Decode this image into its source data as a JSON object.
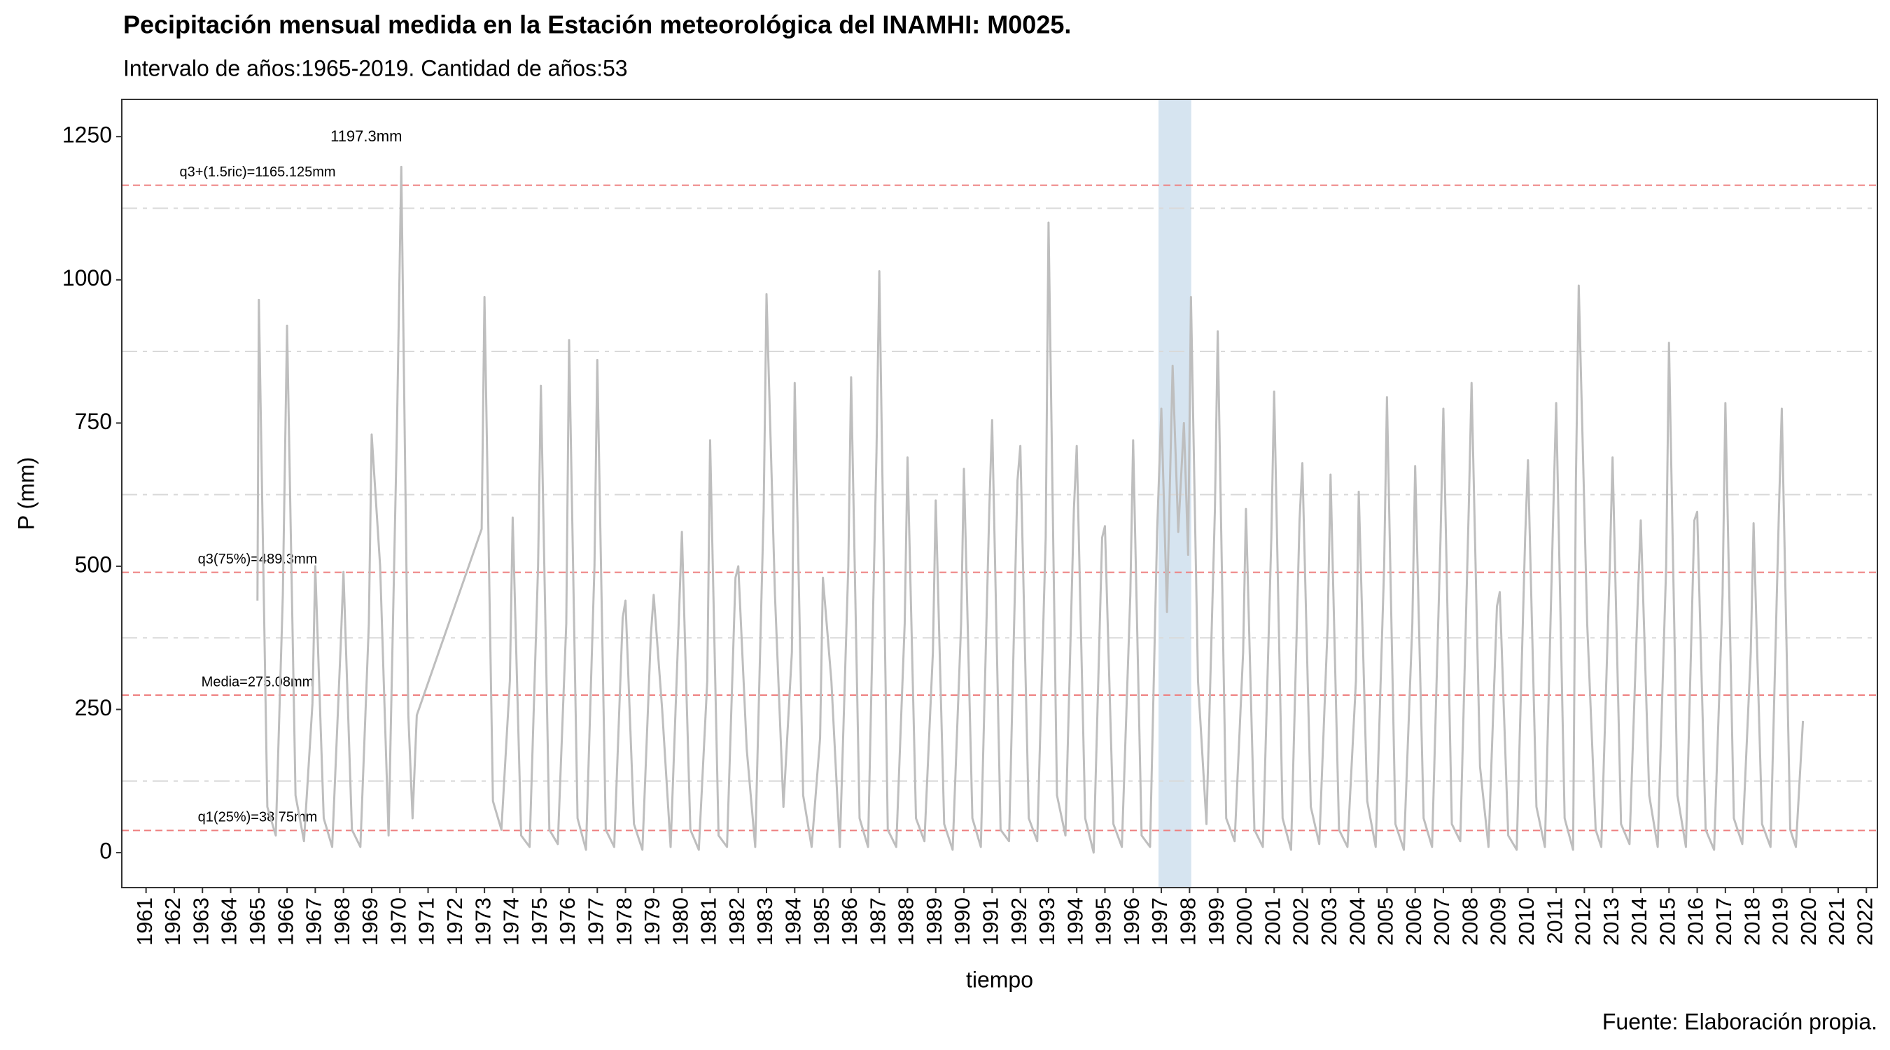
{
  "chart_data": {
    "type": "line",
    "title": "Pecipitación mensual medida en la Estación meteorológica del INAMHI: M0025.",
    "subtitle": "Intervalo de años:1965-2019. Cantidad de años:53",
    "x_label": "tiempo",
    "y_label": "P (mm)",
    "caption": "Fuente: Elaboración propia.",
    "color": "#bebebe",
    "x": [
      1964.95,
      1965.0,
      1965.3,
      1965.6,
      1965.85,
      1966.0,
      1966.3,
      1966.6,
      1966.9,
      1967.0,
      1967.3,
      1967.6,
      1967.9,
      1968.0,
      1968.3,
      1968.6,
      1968.9,
      1969.0,
      1969.3,
      1969.6,
      1969.9,
      1970.05,
      1970.3,
      1970.45,
      1970.6,
      1972.9,
      1973.0,
      1973.3,
      1973.6,
      1973.9,
      1974.0,
      1974.3,
      1974.6,
      1974.9,
      1975.0,
      1975.3,
      1975.6,
      1975.9,
      1976.0,
      1976.3,
      1976.6,
      1976.9,
      1977.0,
      1977.3,
      1977.6,
      1977.9,
      1978.0,
      1978.3,
      1978.6,
      1978.9,
      1979.0,
      1979.3,
      1979.6,
      1979.9,
      1980.0,
      1980.3,
      1980.6,
      1980.9,
      1981.0,
      1981.3,
      1981.6,
      1981.9,
      1982.0,
      1982.3,
      1982.6,
      1982.9,
      1983.0,
      1983.3,
      1983.6,
      1983.9,
      1984.0,
      1984.3,
      1984.6,
      1984.9,
      1985.0,
      1985.3,
      1985.6,
      1985.9,
      1986.0,
      1986.3,
      1986.6,
      1986.9,
      1987.0,
      1987.3,
      1987.6,
      1987.9,
      1988.0,
      1988.3,
      1988.6,
      1988.9,
      1989.0,
      1989.3,
      1989.6,
      1989.9,
      1990.0,
      1990.3,
      1990.6,
      1990.9,
      1991.0,
      1991.3,
      1991.6,
      1991.9,
      1992.0,
      1992.3,
      1992.6,
      1992.9,
      1993.0,
      1993.3,
      1993.6,
      1993.9,
      1994.0,
      1994.3,
      1994.6,
      1994.9,
      1995.0,
      1995.3,
      1995.6,
      1995.9,
      1996.0,
      1996.3,
      1996.6,
      1996.85,
      1997.0,
      1997.2,
      1997.4,
      1997.6,
      1997.8,
      1997.95,
      1998.05,
      1998.3,
      1998.6,
      1998.9,
      1999.0,
      1999.3,
      1999.6,
      1999.9,
      2000.0,
      2000.3,
      2000.6,
      2000.9,
      2001.0,
      2001.3,
      2001.6,
      2001.9,
      2002.0,
      2002.3,
      2002.6,
      2002.9,
      2003.0,
      2003.3,
      2003.6,
      2003.9,
      2004.0,
      2004.3,
      2004.6,
      2004.9,
      2005.0,
      2005.3,
      2005.6,
      2005.9,
      2006.0,
      2006.3,
      2006.6,
      2006.9,
      2007.0,
      2007.3,
      2007.6,
      2007.9,
      2008.0,
      2008.3,
      2008.6,
      2008.9,
      2009.0,
      2009.3,
      2009.6,
      2009.9,
      2010.0,
      2010.3,
      2010.6,
      2010.9,
      2011.0,
      2011.3,
      2011.6,
      2011.7,
      2011.8,
      2012.1,
      2012.4,
      2012.6,
      2012.9,
      2013.0,
      2013.3,
      2013.6,
      2013.9,
      2014.0,
      2014.3,
      2014.6,
      2014.9,
      2015.0,
      2015.3,
      2015.6,
      2015.9,
      2016.0,
      2016.3,
      2016.6,
      2016.9,
      2017.0,
      2017.3,
      2017.6,
      2017.9,
      2018.0,
      2018.3,
      2018.6,
      2018.9,
      2019.0,
      2019.3,
      2019.5,
      2019.75
    ],
    "values": [
      440,
      965,
      80,
      30,
      450,
      920,
      100,
      20,
      260,
      500,
      60,
      10,
      360,
      490,
      40,
      10,
      400,
      730,
      500,
      30,
      750,
      1197.3,
      240,
      60,
      240,
      565,
      970,
      90,
      40,
      300,
      585,
      30,
      10,
      500,
      815,
      40,
      15,
      400,
      895,
      60,
      5,
      500,
      860,
      40,
      10,
      410,
      440,
      50,
      5,
      380,
      450,
      250,
      10,
      420,
      560,
      40,
      5,
      300,
      720,
      30,
      10,
      480,
      500,
      180,
      10,
      600,
      975,
      450,
      80,
      350,
      820,
      100,
      10,
      200,
      480,
      300,
      10,
      500,
      830,
      60,
      10,
      700,
      1015,
      40,
      10,
      400,
      690,
      60,
      20,
      350,
      615,
      50,
      5,
      400,
      670,
      60,
      10,
      600,
      755,
      40,
      20,
      650,
      710,
      60,
      20,
      550,
      1100,
      100,
      30,
      600,
      710,
      60,
      0,
      550,
      570,
      50,
      10,
      450,
      720,
      30,
      10,
      560,
      775,
      420,
      850,
      560,
      750,
      520,
      970,
      300,
      50,
      600,
      910,
      60,
      20,
      350,
      600,
      40,
      10,
      550,
      805,
      60,
      5,
      580,
      680,
      80,
      15,
      400,
      660,
      40,
      10,
      300,
      630,
      90,
      10,
      500,
      795,
      50,
      5,
      400,
      675,
      60,
      10,
      550,
      775,
      50,
      20,
      600,
      820,
      150,
      10,
      430,
      455,
      30,
      5,
      550,
      685,
      80,
      10,
      600,
      785,
      60,
      5,
      650,
      990,
      400,
      40,
      10,
      500,
      690,
      50,
      15,
      450,
      580,
      100,
      10,
      500,
      890,
      100,
      10,
      580,
      595,
      40,
      5,
      450,
      785,
      60,
      15,
      350,
      575,
      50,
      10,
      600,
      775,
      40,
      10,
      230
    ],
    "xlim": [
      1960.14,
      2022.39
    ],
    "ylim": [
      -61,
      1315
    ],
    "xticks": [
      1961,
      1962,
      1963,
      1964,
      1965,
      1966,
      1967,
      1968,
      1969,
      1970,
      1971,
      1972,
      1973,
      1974,
      1975,
      1976,
      1977,
      1978,
      1979,
      1980,
      1981,
      1982,
      1983,
      1984,
      1985,
      1986,
      1987,
      1988,
      1989,
      1990,
      1991,
      1992,
      1993,
      1994,
      1995,
      1996,
      1997,
      1998,
      1999,
      2000,
      2001,
      2002,
      2003,
      2004,
      2005,
      2006,
      2007,
      2008,
      2009,
      2010,
      2011,
      2012,
      2013,
      2014,
      2015,
      2016,
      2017,
      2018,
      2019,
      2020,
      2021,
      2022
    ],
    "yticks": [
      0,
      250,
      500,
      750,
      1000,
      1250
    ],
    "minor_yticks": [
      125,
      375,
      625,
      875,
      1125
    ],
    "reference_color": "#ee8080",
    "reference_lines": [
      {
        "value": 1165.125,
        "label": "q3+(1.5ric)=1165.125mm"
      },
      {
        "value": 489.3,
        "label": "q3(75%)=489.3mm"
      },
      {
        "value": 275.08,
        "label": "Media=275.08mm"
      },
      {
        "value": 38.75,
        "label": "q1(25%)=38.75mm"
      }
    ],
    "highlight": {
      "xlim": [
        1996.9,
        1998.06
      ],
      "color": "#d6e4f0"
    },
    "annotation": {
      "text": "1197.3mm",
      "x": 1970.05,
      "y": 1197.3
    }
  }
}
